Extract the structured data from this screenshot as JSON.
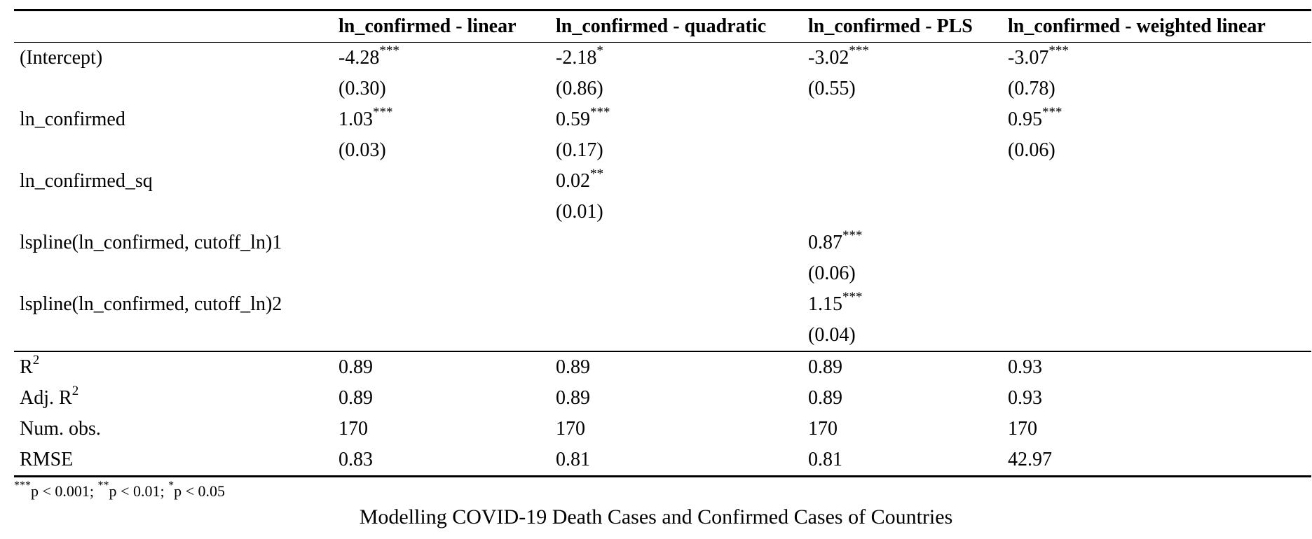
{
  "table": {
    "columns": [
      "",
      "ln_confirmed - linear",
      "ln_confirmed - quadratic",
      "ln_confirmed - PLS",
      "ln_confirmed - weighted linear"
    ],
    "coefficients": [
      {
        "term": "(Intercept)",
        "cells": [
          {
            "est": "-4.28",
            "stars": "***",
            "se": "(0.30)"
          },
          {
            "est": "-2.18",
            "stars": "*",
            "se": "(0.86)"
          },
          {
            "est": "-3.02",
            "stars": "***",
            "se": "(0.55)"
          },
          {
            "est": "-3.07",
            "stars": "***",
            "se": "(0.78)"
          }
        ]
      },
      {
        "term": "ln_confirmed",
        "cells": [
          {
            "est": "1.03",
            "stars": "***",
            "se": "(0.03)"
          },
          {
            "est": "0.59",
            "stars": "***",
            "se": "(0.17)"
          },
          {
            "est": "",
            "stars": "",
            "se": ""
          },
          {
            "est": "0.95",
            "stars": "***",
            "se": "(0.06)"
          }
        ]
      },
      {
        "term": "ln_confirmed_sq",
        "cells": [
          {
            "est": "",
            "stars": "",
            "se": ""
          },
          {
            "est": "0.02",
            "stars": "**",
            "se": "(0.01)"
          },
          {
            "est": "",
            "stars": "",
            "se": ""
          },
          {
            "est": "",
            "stars": "",
            "se": ""
          }
        ]
      },
      {
        "term": "lspline(ln_confirmed, cutoff_ln)1",
        "cells": [
          {
            "est": "",
            "stars": "",
            "se": ""
          },
          {
            "est": "",
            "stars": "",
            "se": ""
          },
          {
            "est": "0.87",
            "stars": "***",
            "se": "(0.06)"
          },
          {
            "est": "",
            "stars": "",
            "se": ""
          }
        ]
      },
      {
        "term": "lspline(ln_confirmed, cutoff_ln)2",
        "cells": [
          {
            "est": "",
            "stars": "",
            "se": ""
          },
          {
            "est": "",
            "stars": "",
            "se": ""
          },
          {
            "est": "1.15",
            "stars": "***",
            "se": "(0.04)"
          },
          {
            "est": "",
            "stars": "",
            "se": ""
          }
        ]
      }
    ],
    "stats": [
      {
        "label": "R",
        "label_sup": "2",
        "values": [
          "0.89",
          "0.89",
          "0.89",
          "0.93"
        ]
      },
      {
        "label": "Adj. R",
        "label_sup": "2",
        "values": [
          "0.89",
          "0.89",
          "0.89",
          "0.93"
        ]
      },
      {
        "label": "Num. obs.",
        "label_sup": "",
        "values": [
          "170",
          "170",
          "170",
          "170"
        ]
      },
      {
        "label": "RMSE",
        "label_sup": "",
        "values": [
          "0.83",
          "0.81",
          "0.81",
          "42.97"
        ]
      }
    ]
  },
  "note": [
    {
      "sup": "***",
      "text": "p < 0.001; "
    },
    {
      "sup": "**",
      "text": "p < 0.01; "
    },
    {
      "sup": "*",
      "text": "p < 0.05"
    }
  ],
  "caption": "Modelling COVID-19 Death Cases and Confirmed Cases of Countries"
}
